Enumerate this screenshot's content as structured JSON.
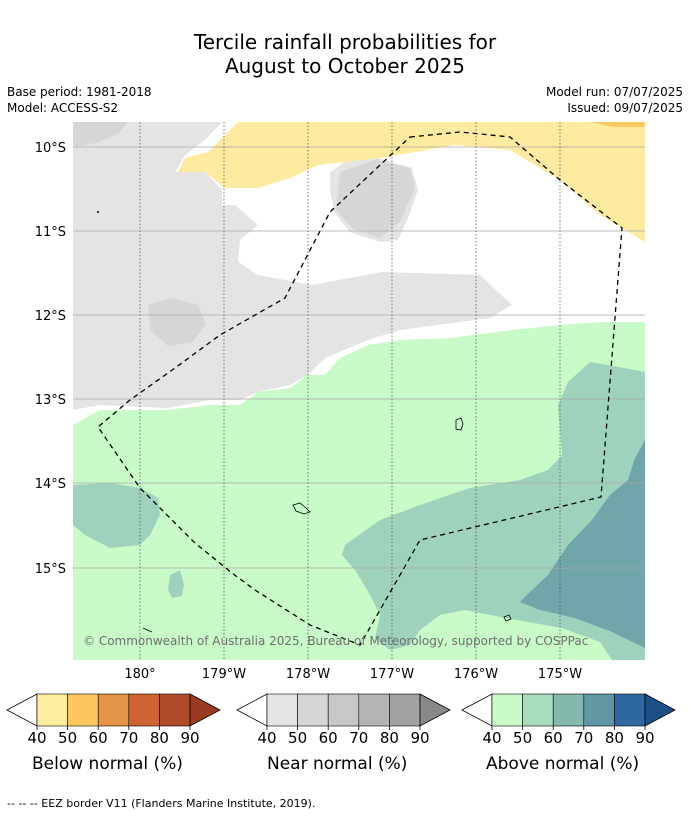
{
  "title_line1": "Tercile rainfall probabilities for",
  "title_line2": "August to October 2025",
  "base_period": "Base period: 1981-2018",
  "model": "Model: ACCESS-S2",
  "model_run": "Model run: 07/07/2025",
  "issued": "Issued: 09/07/2025",
  "lat_labels": [
    "10°S",
    "11°S",
    "12°S",
    "13°S",
    "14°S",
    "15°S"
  ],
  "lon_labels": [
    "180°",
    "179°W",
    "178°W",
    "177°W",
    "176°W",
    "175°W"
  ],
  "copyright": "© Commonwealth of Australia 2025, Bureau of Meteorology, supported by COSPPac",
  "colorbars": [
    {
      "name": "below",
      "label": "Below normal (%)",
      "ticks": [
        "40",
        "50",
        "60",
        "70",
        "80",
        "90"
      ],
      "colors": [
        "#fdeea0",
        "#fdc760",
        "#e49446",
        "#cf6331",
        "#b14c2a",
        "#9b3a22"
      ]
    },
    {
      "name": "near",
      "label": "Near normal (%)",
      "ticks": [
        "40",
        "50",
        "60",
        "70",
        "80",
        "90"
      ],
      "colors": [
        "#e4e4e4",
        "#d6d6d6",
        "#c7c7c7",
        "#b4b4b4",
        "#a1a1a1",
        "#888888"
      ]
    },
    {
      "name": "above",
      "label": "Above normal (%)",
      "ticks": [
        "40",
        "50",
        "60",
        "70",
        "80",
        "90"
      ],
      "colors": [
        "#c9fbc9",
        "#a9dcbd",
        "#84b8ad",
        "#5f97a3",
        "#3067a0",
        "#1b4f86"
      ]
    }
  ],
  "footer": "--  --  -- EEZ border V11 (Flanders Marine Institute, 2019).",
  "map_colors": {
    "near_40": "#e4e4e4",
    "near_50": "#d6d6d6",
    "below_40": "#feeb9f",
    "below_50": "#fdc965",
    "above_40": "#c9fbc9",
    "above_50": "#9fd2bd",
    "above_60": "#70a5a9"
  }
}
